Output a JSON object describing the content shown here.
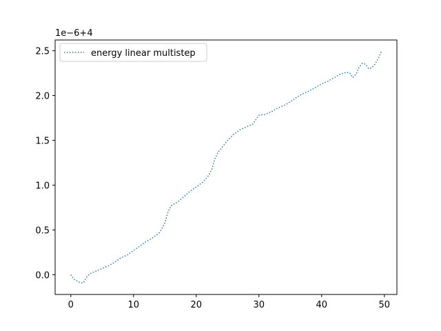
{
  "chart_data": {
    "type": "line",
    "title": "",
    "xlabel": "",
    "ylabel": "",
    "offset_text": "1e−6+4",
    "xlim": [
      -2.5,
      52.0
    ],
    "ylim": [
      -0.22,
      2.62
    ],
    "xticks": [
      0,
      10,
      20,
      30,
      40,
      50
    ],
    "yticks": [
      0.0,
      0.5,
      1.0,
      1.5,
      2.0,
      2.5
    ],
    "xtick_labels": [
      "0",
      "10",
      "20",
      "30",
      "40",
      "50"
    ],
    "ytick_labels": [
      "0.0",
      "0.5",
      "1.0",
      "1.5",
      "2.0",
      "2.5"
    ],
    "grid": false,
    "legend_position": "top-left",
    "series": [
      {
        "name": "energy linear multistep",
        "color": "#1f77b4",
        "style": "dotted",
        "x": [
          0,
          0.5,
          1,
          1.5,
          2,
          2.5,
          3,
          4,
          5,
          6,
          7,
          8,
          9,
          10,
          11,
          12,
          13,
          14,
          14.5,
          15,
          15.5,
          16,
          17,
          18,
          19,
          20,
          21,
          22,
          22.5,
          23,
          23.5,
          24,
          25,
          26,
          27,
          28,
          29,
          30,
          31,
          32,
          33,
          34,
          35,
          36,
          37,
          38,
          39,
          40,
          41,
          42,
          43,
          44,
          44.5,
          45,
          45.5,
          46,
          46.5,
          47,
          47.5,
          48,
          48.5,
          49,
          49.5
        ],
        "y": [
          0.0,
          -0.05,
          -0.07,
          -0.09,
          -0.09,
          -0.03,
          0.01,
          0.04,
          0.07,
          0.1,
          0.14,
          0.19,
          0.22,
          0.27,
          0.32,
          0.37,
          0.41,
          0.46,
          0.51,
          0.58,
          0.7,
          0.77,
          0.81,
          0.87,
          0.93,
          0.98,
          1.03,
          1.11,
          1.18,
          1.3,
          1.37,
          1.41,
          1.5,
          1.57,
          1.62,
          1.65,
          1.68,
          1.78,
          1.79,
          1.82,
          1.86,
          1.89,
          1.93,
          1.98,
          2.02,
          2.05,
          2.09,
          2.13,
          2.16,
          2.2,
          2.24,
          2.26,
          2.25,
          2.2,
          2.24,
          2.32,
          2.36,
          2.35,
          2.3,
          2.31,
          2.35,
          2.41,
          2.49
        ]
      }
    ]
  }
}
